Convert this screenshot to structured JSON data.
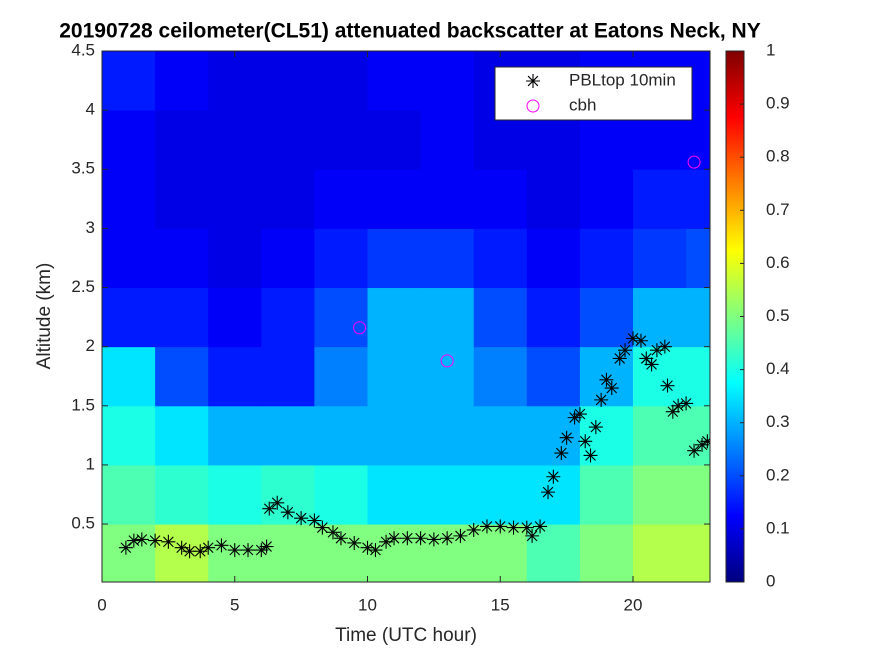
{
  "chart_data": {
    "type": "heatmap",
    "title": "20190728 ceilometer(CL51) attenuated backscatter at Eatons Neck, NY",
    "xlabel": "Time (UTC hour)",
    "ylabel": "Altitude (km)",
    "xlim": [
      0,
      22.9
    ],
    "xticks": [
      0,
      5,
      10,
      15,
      20
    ],
    "ylim": [
      0.01,
      4.5
    ],
    "yticks": [
      0.5,
      1,
      1.5,
      2,
      2.5,
      3,
      3.5,
      4,
      4.5
    ],
    "clim": [
      0,
      1
    ],
    "cticks": [
      0,
      0.1,
      0.2,
      0.3,
      0.4,
      0.5,
      0.6,
      0.7,
      0.8,
      0.9,
      1
    ],
    "colormap": "jet",
    "legend": "upper right",
    "heatmap": {
      "x_edges": [
        0,
        2,
        4,
        6,
        8,
        10,
        12,
        14,
        16,
        18,
        20,
        22,
        24
      ],
      "y_edges": [
        0,
        0.5,
        1,
        1.5,
        2,
        2.5,
        3,
        3.5,
        4,
        4.5
      ],
      "values": [
        [
          0.5,
          0.55,
          0.5,
          0.5,
          0.5,
          0.5,
          0.5,
          0.5,
          0.45,
          0.5,
          0.55,
          0.55
        ],
        [
          0.45,
          0.42,
          0.4,
          0.42,
          0.4,
          0.35,
          0.35,
          0.35,
          0.35,
          0.45,
          0.5,
          0.5
        ],
        [
          0.4,
          0.35,
          0.3,
          0.3,
          0.3,
          0.3,
          0.3,
          0.3,
          0.3,
          0.4,
          0.45,
          0.45
        ],
        [
          0.35,
          0.2,
          0.15,
          0.15,
          0.25,
          0.3,
          0.3,
          0.25,
          0.2,
          0.3,
          0.4,
          0.4
        ],
        [
          0.15,
          0.15,
          0.12,
          0.15,
          0.2,
          0.3,
          0.3,
          0.2,
          0.15,
          0.2,
          0.3,
          0.3
        ],
        [
          0.12,
          0.12,
          0.1,
          0.12,
          0.15,
          0.18,
          0.18,
          0.15,
          0.12,
          0.15,
          0.18,
          0.2
        ],
        [
          0.12,
          0.1,
          0.1,
          0.1,
          0.12,
          0.12,
          0.12,
          0.12,
          0.1,
          0.12,
          0.15,
          0.15
        ],
        [
          0.12,
          0.1,
          0.1,
          0.1,
          0.1,
          0.1,
          0.12,
          0.1,
          0.1,
          0.12,
          0.12,
          0.12
        ],
        [
          0.15,
          0.12,
          0.1,
          0.1,
          0.1,
          0.12,
          0.12,
          0.1,
          0.1,
          0.12,
          0.12,
          0.12
        ]
      ]
    },
    "series": [
      {
        "name": "PBLtop 10min",
        "marker": "asterisk",
        "color": "#000000",
        "x": [
          0.9,
          1.2,
          1.5,
          2,
          2.5,
          3,
          3.3,
          3.7,
          4,
          4.5,
          5,
          5.5,
          6,
          6.2,
          6.3,
          6.6,
          7,
          7.5,
          8,
          8.3,
          8.7,
          9,
          9.5,
          10,
          10.3,
          10.7,
          11,
          11.5,
          12,
          12.5,
          13,
          13.5,
          14,
          14.5,
          15,
          15.5,
          16,
          16.2,
          16.5,
          16.8,
          17,
          17.3,
          17.5,
          17.8,
          18,
          18.2,
          18.4,
          18.6,
          18.8,
          19,
          19.2,
          19.5,
          19.7,
          20,
          20.3,
          20.5,
          20.7,
          20.9,
          21.2,
          21.3,
          21.5,
          21.7,
          22,
          22.3,
          22.6,
          22.8
        ],
        "values": [
          0.3,
          0.36,
          0.37,
          0.36,
          0.35,
          0.3,
          0.27,
          0.27,
          0.3,
          0.32,
          0.28,
          0.28,
          0.28,
          0.31,
          0.63,
          0.68,
          0.6,
          0.55,
          0.53,
          0.47,
          0.43,
          0.38,
          0.34,
          0.3,
          0.28,
          0.35,
          0.38,
          0.38,
          0.38,
          0.37,
          0.38,
          0.4,
          0.45,
          0.48,
          0.48,
          0.47,
          0.47,
          0.4,
          0.48,
          0.77,
          0.9,
          1.1,
          1.23,
          1.4,
          1.43,
          1.2,
          1.08,
          1.32,
          1.55,
          1.72,
          1.65,
          1.9,
          1.97,
          2.07,
          2.05,
          1.9,
          1.85,
          1.97,
          2.0,
          1.67,
          1.45,
          1.5,
          1.52,
          1.12,
          1.17,
          1.2
        ]
      },
      {
        "name": "cbh",
        "marker": "circle",
        "color": "#ff00ff",
        "x": [
          9.7,
          13.0,
          22.3
        ],
        "values": [
          2.16,
          1.88,
          3.56
        ]
      }
    ]
  }
}
